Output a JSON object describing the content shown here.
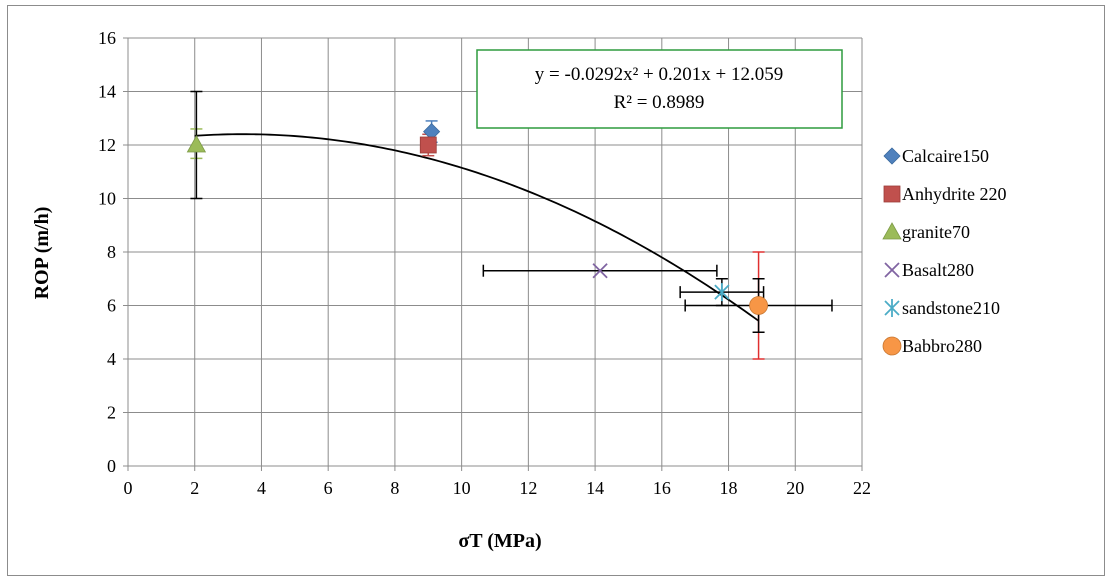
{
  "chart_data": {
    "type": "scatter",
    "xlabel": "σT (MPa)",
    "ylabel": "ROP (m/h)",
    "xlim": [
      0,
      22
    ],
    "ylim": [
      0,
      16
    ],
    "x_ticks": [
      0,
      2,
      4,
      6,
      8,
      10,
      12,
      14,
      16,
      18,
      20,
      22
    ],
    "y_ticks": [
      0,
      2,
      4,
      6,
      8,
      10,
      12,
      14,
      16
    ],
    "grid": true,
    "legend_position": "right",
    "trendline": {
      "type": "polynomial",
      "coefficients": [
        -0.0292,
        0.201,
        12.059
      ],
      "x_range": [
        2,
        18.9
      ],
      "equation_label": "y = -0.0292x² + 0.201x + 12.059",
      "r2_label": "R² = 0.8989",
      "color": "#000000",
      "label_border_color": "#2e9b3e"
    },
    "series": [
      {
        "name": "Calcaire150",
        "marker": "diamond",
        "color": "#4f81bd",
        "points": [
          {
            "x": 9.1,
            "y": 12.5,
            "y_err": [
              0.4,
              0.4
            ]
          }
        ]
      },
      {
        "name": "Anhydrite 220",
        "marker": "square",
        "color": "#c0504d",
        "points": [
          {
            "x": 9.0,
            "y": 12.0,
            "y_err": [
              0.4,
              0.4
            ]
          }
        ]
      },
      {
        "name": "granite70",
        "marker": "triangle",
        "color": "#9bbb59",
        "points": [
          {
            "x": 2.05,
            "y": 12.0,
            "y_err": [
              0.5,
              0.6
            ]
          }
        ]
      },
      {
        "name": "Basalt280",
        "marker": "x",
        "color": "#8064a2",
        "points": [
          {
            "x": 14.15,
            "y": 7.3
          }
        ]
      },
      {
        "name": "sandstone210",
        "marker": "asterisk",
        "color": "#4bacc6",
        "points": [
          {
            "x": 17.8,
            "y": 6.5
          }
        ]
      },
      {
        "name": "Babbro280",
        "marker": "circle",
        "color": "#f79646",
        "points": [
          {
            "x": 18.9,
            "y": 6.0,
            "y_err": [
              2.0,
              2.0
            ],
            "err_color": "#e03030"
          }
        ]
      }
    ],
    "extra_error_bars": [
      {
        "x": 2.05,
        "y": 12.0,
        "y_err": [
          2.0,
          2.0
        ],
        "color": "#000000"
      },
      {
        "x": 14.15,
        "y": 7.3,
        "x_err": [
          3.5,
          3.5
        ],
        "color": "#000000"
      },
      {
        "x": 17.8,
        "y": 6.5,
        "x_err": [
          1.25,
          1.25
        ],
        "y_err": [
          0.5,
          0.5
        ],
        "color": "#000000"
      },
      {
        "x": 18.9,
        "y": 6.0,
        "x_err": [
          2.2,
          2.2
        ],
        "y_err": [
          1.0,
          1.0
        ],
        "color": "#000000"
      }
    ]
  }
}
